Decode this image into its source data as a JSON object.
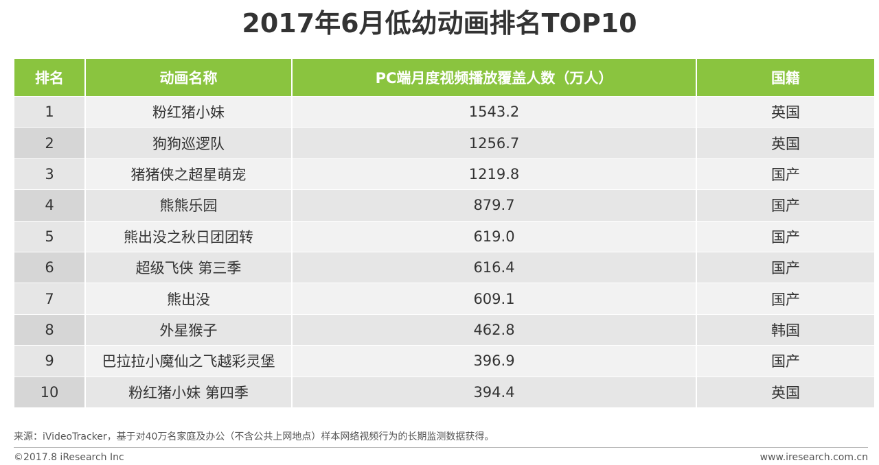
{
  "title": "2017年6月低幼动画排名TOP10",
  "table": {
    "headers": [
      "排名",
      "动画名称",
      "PC端月度视频播放覆盖人数（万人）",
      "国籍"
    ],
    "rows": [
      {
        "rank": "1",
        "name": "粉红猪小妹",
        "value": "1543.2",
        "country": "英国"
      },
      {
        "rank": "2",
        "name": "狗狗巡逻队",
        "value": "1256.7",
        "country": "英国"
      },
      {
        "rank": "3",
        "name": "猪猪侠之超星萌宠",
        "value": "1219.8",
        "country": "国产"
      },
      {
        "rank": "4",
        "name": "熊熊乐园",
        "value": "879.7",
        "country": "国产"
      },
      {
        "rank": "5",
        "name": "熊出没之秋日团团转",
        "value": "619.0",
        "country": "国产"
      },
      {
        "rank": "6",
        "name": "超级飞侠 第三季",
        "value": "616.4",
        "country": "国产"
      },
      {
        "rank": "7",
        "name": "熊出没",
        "value": "609.1",
        "country": "国产"
      },
      {
        "rank": "8",
        "name": "外星猴子",
        "value": "462.8",
        "country": "韩国"
      },
      {
        "rank": "9",
        "name": "巴拉拉小魔仙之飞越彩灵堡",
        "value": "396.9",
        "country": "国产"
      },
      {
        "rank": "10",
        "name": "粉红猪小妹 第四季",
        "value": "394.4",
        "country": "英国"
      }
    ]
  },
  "footer": {
    "source": "来源：iVideoTracker，基于对40万名家庭及办公（不含公共上网地点）样本网络视频行为的长期监测数据获得。",
    "copyright": "©2017.8 iResearch Inc",
    "website": "www.iresearch.com.cn"
  },
  "colors": {
    "header_bg": "#8ac43f",
    "row_light": "#f2f2f2",
    "row_dark": "#e6e6e6"
  }
}
